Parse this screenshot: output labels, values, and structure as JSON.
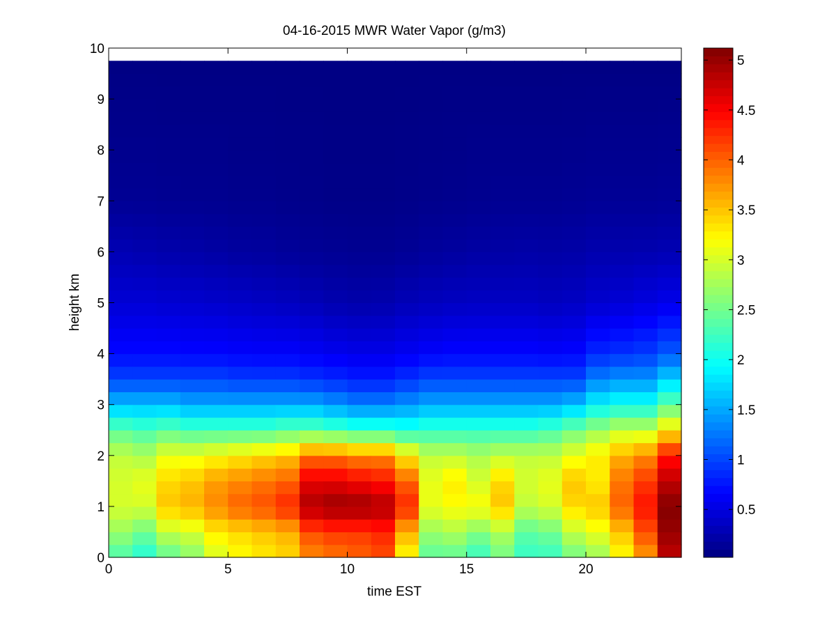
{
  "chart_data": {
    "type": "heatmap",
    "title": "04-16-2015 MWR Water Vapor (g/m3)",
    "xlabel": "time EST",
    "ylabel": "height km",
    "xlim": [
      0,
      24
    ],
    "ylim": [
      0,
      10
    ],
    "xticks": [
      0,
      5,
      10,
      15,
      20
    ],
    "yticks": [
      0,
      1,
      2,
      3,
      4,
      5,
      6,
      7,
      8,
      9,
      10
    ],
    "colorbar": {
      "colormap": "jet",
      "range": [
        0.02,
        5.12
      ],
      "ticks": [
        0.5,
        1,
        1.5,
        2,
        2.5,
        3,
        3.5,
        4,
        4.5,
        5
      ],
      "tick_labels": [
        "0.5",
        "1",
        "1.5",
        "2",
        "2.5",
        "3",
        "3.5",
        "4",
        "4.5",
        "5"
      ]
    },
    "grid": false,
    "time_hours": [
      0,
      1,
      2,
      3,
      4,
      5,
      6,
      7,
      8,
      9,
      10,
      11,
      12,
      13,
      14,
      15,
      16,
      17,
      18,
      19,
      20,
      21,
      22,
      23
    ],
    "time_step_hours": 1,
    "height_top_km": 9.75,
    "profile_heights_km": [
      0,
      0.5,
      1.0,
      1.5,
      2.0,
      2.5,
      3.0,
      3.5,
      4.0,
      5.0,
      6.0,
      7.0,
      9.75
    ],
    "profiles": [
      [
        2.3,
        2.7,
        3.0,
        3.0,
        2.9,
        2.4,
        1.6,
        1.0,
        0.7,
        0.45,
        0.28,
        0.12,
        0.04
      ],
      [
        2.1,
        2.5,
        3.0,
        3.1,
        2.8,
        2.3,
        1.6,
        1.0,
        0.7,
        0.45,
        0.26,
        0.12,
        0.04
      ],
      [
        2.4,
        2.9,
        3.5,
        3.4,
        3.1,
        2.4,
        1.6,
        1.0,
        0.7,
        0.43,
        0.24,
        0.11,
        0.04
      ],
      [
        2.6,
        3.0,
        3.6,
        3.5,
        3.1,
        2.3,
        1.5,
        1.0,
        0.68,
        0.42,
        0.22,
        0.1,
        0.04
      ],
      [
        3.0,
        3.3,
        3.8,
        3.7,
        3.2,
        2.3,
        1.5,
        1.0,
        0.68,
        0.4,
        0.2,
        0.1,
        0.04
      ],
      [
        3.2,
        3.4,
        4.0,
        3.8,
        3.3,
        2.3,
        1.5,
        0.95,
        0.66,
        0.38,
        0.18,
        0.09,
        0.04
      ],
      [
        3.3,
        3.5,
        4.1,
        3.9,
        3.4,
        2.3,
        1.5,
        0.95,
        0.65,
        0.36,
        0.17,
        0.09,
        0.04
      ],
      [
        3.4,
        3.6,
        4.3,
        4.0,
        3.5,
        2.4,
        1.5,
        0.95,
        0.65,
        0.34,
        0.15,
        0.08,
        0.04
      ],
      [
        3.8,
        4.1,
        4.9,
        4.6,
        3.9,
        2.4,
        1.5,
        0.9,
        0.62,
        0.3,
        0.13,
        0.07,
        0.04
      ],
      [
        3.9,
        4.2,
        5.0,
        4.6,
        3.9,
        2.3,
        1.4,
        0.85,
        0.58,
        0.26,
        0.12,
        0.06,
        0.04
      ],
      [
        4.0,
        4.2,
        5.0,
        4.5,
        3.8,
        2.2,
        1.3,
        0.8,
        0.55,
        0.24,
        0.11,
        0.06,
        0.04
      ],
      [
        4.1,
        4.3,
        4.9,
        4.4,
        3.8,
        2.2,
        1.3,
        0.8,
        0.55,
        0.25,
        0.11,
        0.06,
        0.04
      ],
      [
        3.2,
        3.6,
        4.3,
        4.0,
        3.3,
        2.1,
        1.4,
        0.9,
        0.6,
        0.3,
        0.13,
        0.07,
        0.04
      ],
      [
        2.4,
        2.7,
        3.1,
        3.1,
        2.9,
        2.2,
        1.5,
        1.0,
        0.65,
        0.33,
        0.16,
        0.08,
        0.04
      ],
      [
        2.4,
        2.8,
        3.2,
        3.3,
        2.9,
        2.2,
        1.5,
        1.0,
        0.68,
        0.35,
        0.18,
        0.09,
        0.04
      ],
      [
        2.2,
        2.6,
        3.2,
        3.0,
        2.8,
        2.2,
        1.5,
        1.0,
        0.68,
        0.36,
        0.2,
        0.1,
        0.04
      ],
      [
        2.5,
        2.8,
        3.5,
        3.4,
        2.9,
        2.2,
        1.5,
        1.0,
        0.68,
        0.36,
        0.21,
        0.11,
        0.04
      ],
      [
        2.2,
        2.4,
        2.9,
        3.0,
        2.9,
        2.2,
        1.5,
        1.0,
        0.68,
        0.36,
        0.22,
        0.11,
        0.04
      ],
      [
        2.2,
        2.5,
        3.0,
        3.1,
        2.9,
        2.3,
        1.5,
        1.0,
        0.66,
        0.34,
        0.21,
        0.11,
        0.04
      ],
      [
        2.5,
        2.9,
        3.4,
        3.5,
        3.1,
        2.5,
        1.6,
        1.0,
        0.68,
        0.36,
        0.22,
        0.12,
        0.04
      ],
      [
        2.7,
        3.1,
        3.5,
        3.3,
        3.3,
        2.7,
        1.9,
        1.3,
        0.85,
        0.42,
        0.25,
        0.13,
        0.04
      ],
      [
        3.2,
        3.5,
        4.0,
        3.9,
        3.6,
        2.9,
        2.0,
        1.4,
        0.9,
        0.45,
        0.25,
        0.13,
        0.04
      ],
      [
        3.7,
        4.1,
        4.4,
        4.2,
        3.8,
        2.9,
        2.0,
        1.4,
        0.95,
        0.5,
        0.26,
        0.13,
        0.04
      ],
      [
        4.8,
        5.0,
        5.1,
        4.8,
        4.4,
        3.3,
        2.4,
        1.7,
        1.1,
        0.55,
        0.28,
        0.14,
        0.04
      ]
    ]
  }
}
